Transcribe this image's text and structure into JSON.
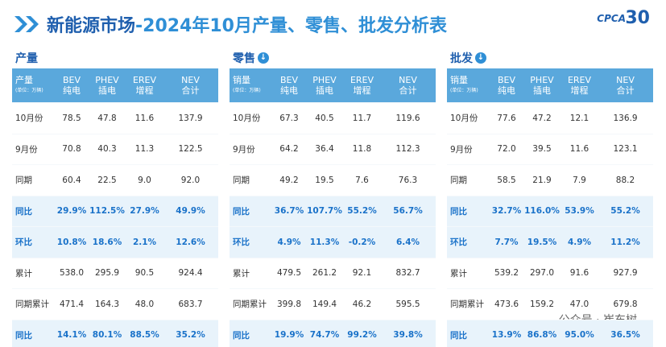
{
  "header": {
    "title_main": "新能源市场",
    "title_rest": "-2024年10月产量、零售、批发分析表",
    "logo": "CPCA",
    "logo_sub": "30"
  },
  "tables": [
    {
      "label": "产量",
      "corner": "产量",
      "unit": "(单位：万辆)",
      "columns": [
        {
          "code": "BEV",
          "name": "纯电"
        },
        {
          "code": "PHEV",
          "name": "插电"
        },
        {
          "code": "EREV",
          "name": "增程"
        },
        {
          "code": "NEV",
          "name": "合计"
        }
      ],
      "rows": [
        {
          "label": "10月份",
          "cells": [
            "78.5",
            "47.8",
            "11.6",
            "137.9"
          ]
        },
        {
          "label": "9月份",
          "cells": [
            "70.8",
            "40.3",
            "11.3",
            "122.5"
          ]
        },
        {
          "label": "同期",
          "cells": [
            "60.4",
            "22.5",
            "9.0",
            "92.0"
          ]
        },
        {
          "label": "同比",
          "cells": [
            "29.9%",
            "112.5%",
            "27.9%",
            "49.9%"
          ]
        },
        {
          "label": "环比",
          "cells": [
            "10.8%",
            "18.6%",
            "2.1%",
            "12.6%"
          ]
        },
        {
          "label": "累计",
          "cells": [
            "538.0",
            "295.9",
            "90.5",
            "924.4"
          ]
        },
        {
          "label": "同期累计",
          "cells": [
            "471.4",
            "164.3",
            "48.0",
            "683.7"
          ]
        },
        {
          "label": "同比",
          "cells": [
            "14.1%",
            "80.1%",
            "88.5%",
            "35.2%"
          ]
        }
      ]
    },
    {
      "label": "零售",
      "corner": "销量",
      "unit": "(单位：万辆)",
      "columns": [
        {
          "code": "BEV",
          "name": "纯电"
        },
        {
          "code": "PHEV",
          "name": "插电"
        },
        {
          "code": "EREV",
          "name": "增程"
        },
        {
          "code": "NEV",
          "name": "合计"
        }
      ],
      "rows": [
        {
          "label": "10月份",
          "cells": [
            "67.3",
            "40.5",
            "11.7",
            "119.6"
          ]
        },
        {
          "label": "9月份",
          "cells": [
            "64.2",
            "36.4",
            "11.8",
            "112.3"
          ]
        },
        {
          "label": "同期",
          "cells": [
            "49.2",
            "19.5",
            "7.6",
            "76.3"
          ]
        },
        {
          "label": "同比",
          "cells": [
            "36.7%",
            "107.7%",
            "55.2%",
            "56.7%"
          ]
        },
        {
          "label": "环比",
          "cells": [
            "4.9%",
            "11.3%",
            "-0.2%",
            "6.4%"
          ]
        },
        {
          "label": "累计",
          "cells": [
            "479.5",
            "261.2",
            "92.1",
            "832.7"
          ]
        },
        {
          "label": "同期累计",
          "cells": [
            "399.8",
            "149.4",
            "46.2",
            "595.5"
          ]
        },
        {
          "label": "同比",
          "cells": [
            "19.9%",
            "74.7%",
            "99.2%",
            "39.8%"
          ]
        }
      ]
    },
    {
      "label": "批发",
      "corner": "销量",
      "unit": "(单位：万辆)",
      "columns": [
        {
          "code": "BEV",
          "name": "纯电"
        },
        {
          "code": "PHEV",
          "name": "插电"
        },
        {
          "code": "EREV",
          "name": "增程"
        },
        {
          "code": "NEV",
          "name": "合计"
        }
      ],
      "rows": [
        {
          "label": "10月份",
          "cells": [
            "77.6",
            "47.2",
            "12.1",
            "136.9"
          ]
        },
        {
          "label": "9月份",
          "cells": [
            "72.0",
            "39.5",
            "11.6",
            "123.1"
          ]
        },
        {
          "label": "同期",
          "cells": [
            "58.5",
            "21.9",
            "7.9",
            "88.2"
          ]
        },
        {
          "label": "同比",
          "cells": [
            "32.7%",
            "116.0%",
            "53.9%",
            "55.2%"
          ]
        },
        {
          "label": "环比",
          "cells": [
            "7.7%",
            "19.5%",
            "4.9%",
            "11.2%"
          ]
        },
        {
          "label": "累计",
          "cells": [
            "539.2",
            "297.0",
            "91.6",
            "927.9"
          ]
        },
        {
          "label": "同期累计",
          "cells": [
            "473.6",
            "159.2",
            "47.0",
            "679.8"
          ]
        },
        {
          "label": "同比",
          "cells": [
            "13.9%",
            "86.8%",
            "95.0%",
            "36.5%"
          ]
        }
      ]
    }
  ],
  "watermark": "公众号 · 崔东树"
}
